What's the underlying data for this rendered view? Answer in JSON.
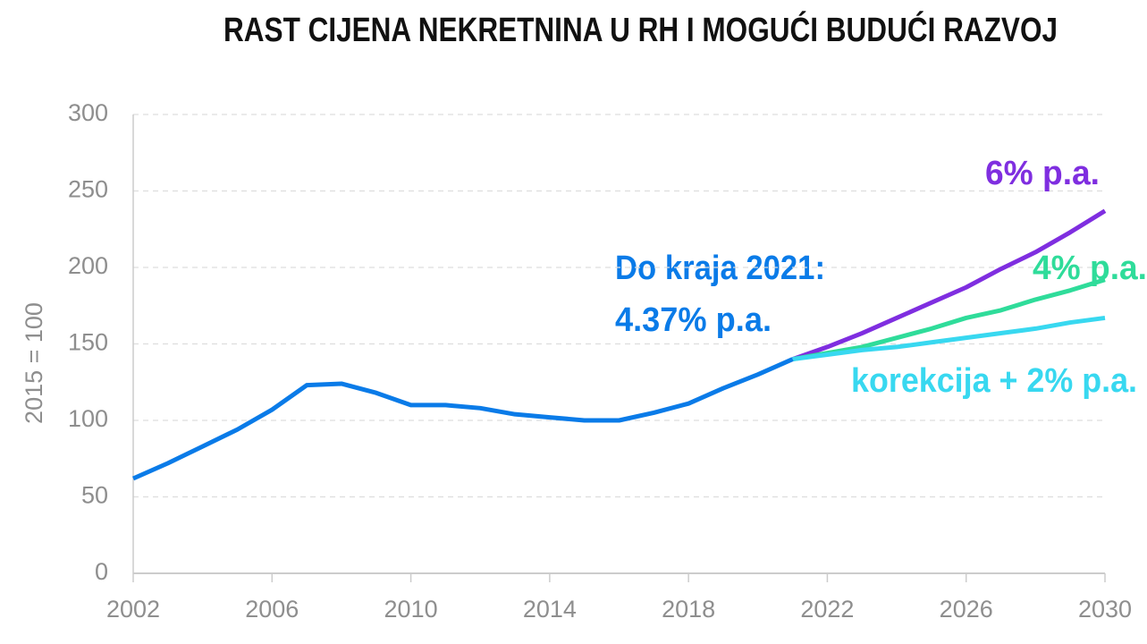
{
  "chart_data": {
    "type": "line",
    "title": "RAST CIJENA NEKRETNINA U RH I MOGUĆI BUDUĆI RAZVOJ",
    "ylabel": "2015 = 100",
    "annotations": [
      "Do kraja 2021:",
      "4.37% p.a."
    ],
    "x": [
      2002,
      2003,
      2004,
      2005,
      2006,
      2007,
      2008,
      2009,
      2010,
      2011,
      2012,
      2013,
      2014,
      2015,
      2016,
      2017,
      2018,
      2019,
      2020,
      2021,
      2022,
      2023,
      2024,
      2025,
      2026,
      2027,
      2028,
      2029,
      2030
    ],
    "series": [
      {
        "color": "#0a7be8",
        "values": [
          62,
          72,
          83,
          94,
          107,
          123,
          124,
          118,
          110,
          110,
          108,
          104,
          102,
          100,
          100,
          105,
          111,
          121,
          130,
          140,
          null,
          null,
          null,
          null,
          null,
          null,
          null,
          null,
          null
        ]
      },
      {
        "name": "6% p.a.",
        "color": "#7f2ee0",
        "values": [
          null,
          null,
          null,
          null,
          null,
          null,
          null,
          null,
          null,
          null,
          null,
          null,
          null,
          null,
          null,
          null,
          null,
          null,
          null,
          140,
          148,
          157,
          167,
          177,
          187,
          199,
          210,
          223,
          237
        ]
      },
      {
        "name": "4% p.a.",
        "color": "#2fdc9a",
        "values": [
          null,
          null,
          null,
          null,
          null,
          null,
          null,
          null,
          null,
          null,
          null,
          null,
          null,
          null,
          null,
          null,
          null,
          null,
          null,
          140,
          144,
          148,
          154,
          160,
          167,
          172,
          179,
          185,
          192
        ]
      },
      {
        "name": "korekcija + 2% p.a.",
        "color": "#38d8f0",
        "values": [
          null,
          null,
          null,
          null,
          null,
          null,
          null,
          null,
          null,
          null,
          null,
          null,
          null,
          null,
          null,
          null,
          null,
          null,
          null,
          140,
          143,
          146,
          148,
          151,
          154,
          157,
          160,
          164,
          167
        ]
      }
    ],
    "xlim": [
      2002,
      2030
    ],
    "xticks": [
      2002,
      2006,
      2010,
      2014,
      2018,
      2022,
      2026,
      2030
    ],
    "ylim": [
      0,
      300
    ],
    "yticks": [
      0,
      50,
      100,
      150,
      200,
      250,
      300
    ],
    "grid": true
  }
}
